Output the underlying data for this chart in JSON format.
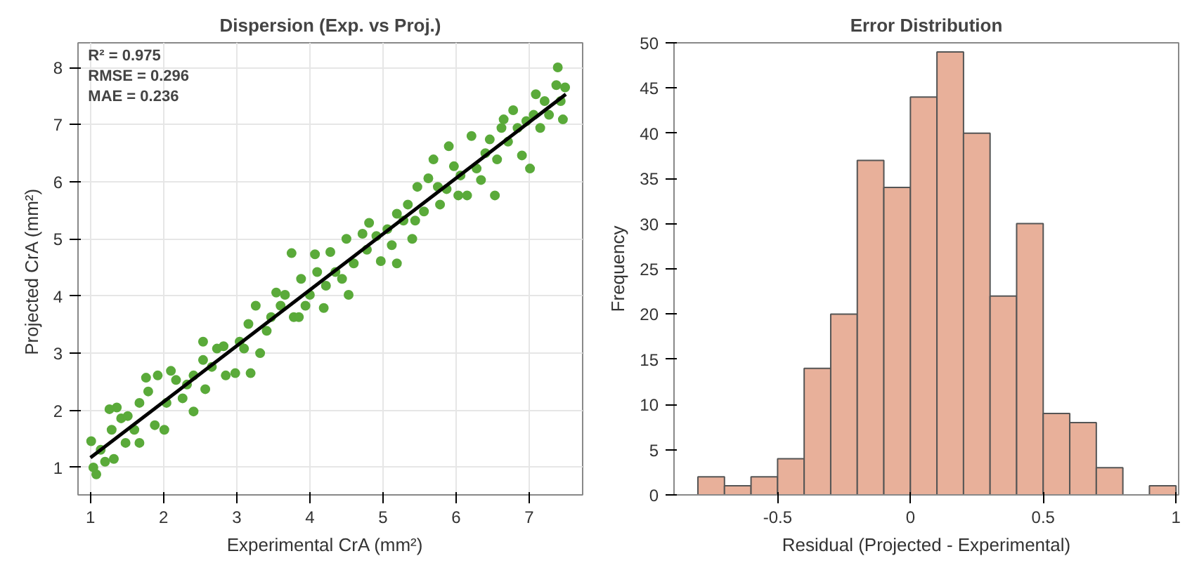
{
  "chart_data": [
    {
      "type": "scatter",
      "title": "Dispersion (Exp. vs Proj.)",
      "xlabel": "Experimental  CrA  (mm²)",
      "ylabel": "Projected CrA  (mm²)",
      "xlim": [
        0.83,
        7.73
      ],
      "ylim": [
        0.52,
        8.43
      ],
      "xticks": [
        1,
        2,
        3,
        4,
        5,
        6,
        7
      ],
      "yticks": [
        1,
        2,
        3,
        4,
        5,
        6,
        7,
        8
      ],
      "grid": true,
      "annotations": [
        "R² = 0.975",
        "RMSE = 0.296",
        "MAE = 0.236"
      ],
      "series": [
        {
          "type": "scatter",
          "marker": "circle",
          "color": "#5aaa3a",
          "x": [
            1.04,
            1.01,
            1.08,
            1.2,
            1.14,
            1.32,
            1.29,
            1.26,
            1.36,
            1.42,
            1.48,
            1.51,
            1.6,
            1.67,
            1.67,
            1.79,
            1.76,
            1.92,
            1.88,
            2.01,
            2.04,
            2.1,
            2.17,
            2.26,
            2.32,
            2.41,
            2.41,
            2.54,
            2.57,
            2.54,
            2.66,
            2.73,
            2.85,
            2.82,
            2.98,
            3.04,
            3.1,
            3.19,
            3.16,
            3.26,
            3.32,
            3.41,
            3.47,
            3.54,
            3.6,
            3.66,
            3.75,
            3.78,
            3.85,
            3.88,
            3.94,
            4.0,
            4.07,
            4.1,
            4.19,
            4.22,
            4.28,
            4.35,
            4.44,
            4.5,
            4.53,
            4.6,
            4.72,
            4.78,
            4.81,
            4.91,
            4.97,
            5.06,
            5.12,
            5.19,
            5.19,
            5.28,
            5.34,
            5.4,
            5.44,
            5.47,
            5.56,
            5.62,
            5.69,
            5.75,
            5.78,
            5.87,
            5.9,
            5.97,
            6.03,
            6.06,
            6.15,
            6.21,
            6.28,
            6.34,
            6.4,
            6.46,
            6.53,
            6.56,
            6.62,
            6.65,
            6.71,
            6.78,
            6.84,
            6.9,
            6.96,
            7.01,
            7.06,
            7.09,
            7.15,
            7.21,
            7.27,
            7.37,
            7.39,
            7.43,
            7.46,
            7.49
          ],
          "values": [
            1.0,
            1.46,
            0.88,
            1.1,
            1.31,
            1.15,
            1.66,
            2.02,
            2.05,
            1.86,
            1.43,
            1.9,
            1.66,
            1.43,
            2.13,
            2.33,
            2.57,
            2.61,
            1.74,
            1.66,
            2.13,
            2.69,
            2.53,
            2.21,
            2.45,
            1.98,
            2.61,
            2.88,
            2.37,
            3.2,
            2.76,
            3.08,
            2.61,
            3.12,
            2.65,
            3.2,
            3.08,
            2.65,
            3.51,
            3.83,
            3.0,
            3.39,
            3.63,
            4.06,
            3.83,
            4.02,
            4.75,
            3.63,
            3.63,
            4.3,
            3.83,
            4.02,
            4.73,
            4.42,
            3.79,
            4.18,
            4.77,
            4.42,
            4.3,
            5.0,
            4.02,
            4.57,
            5.09,
            4.81,
            5.28,
            5.05,
            4.61,
            5.17,
            4.89,
            4.57,
            5.44,
            5.32,
            5.6,
            5.0,
            5.32,
            5.91,
            5.48,
            6.06,
            6.39,
            5.91,
            5.6,
            5.87,
            6.62,
            6.27,
            5.76,
            6.11,
            5.76,
            6.8,
            6.23,
            6.03,
            6.5,
            6.74,
            5.76,
            6.39,
            6.94,
            7.09,
            6.7,
            7.25,
            6.94,
            6.46,
            7.06,
            6.23,
            7.17,
            7.53,
            6.94,
            7.41,
            7.17,
            7.69,
            8.0,
            7.41,
            7.09,
            7.65
          ]
        },
        {
          "type": "line",
          "color": "#000000",
          "x": [
            1.0,
            7.5
          ],
          "values": [
            1.17,
            7.53
          ]
        }
      ]
    },
    {
      "type": "histogram",
      "title": "Error Distribution",
      "xlabel": "Residual (Projected - Experimental)",
      "ylabel": "Frequency",
      "xlim": [
        -0.89,
        1.01
      ],
      "ylim": [
        0,
        50
      ],
      "xticks": [
        -0.5,
        0,
        0.5,
        1
      ],
      "yticks": [
        0,
        5,
        10,
        15,
        20,
        25,
        30,
        35,
        40,
        45,
        50
      ],
      "color": "#e8b09a",
      "bins": [
        -0.8,
        -0.7,
        -0.6,
        -0.5,
        -0.4,
        -0.3,
        -0.2,
        -0.1,
        0,
        0.1,
        0.2,
        0.3,
        0.4,
        0.5,
        0.6,
        0.7,
        0.8,
        0.9,
        1.0
      ],
      "values": [
        2,
        1,
        2,
        4,
        14,
        20,
        37,
        34,
        44,
        49,
        40,
        22,
        30,
        9,
        8,
        3,
        0,
        1
      ]
    }
  ]
}
